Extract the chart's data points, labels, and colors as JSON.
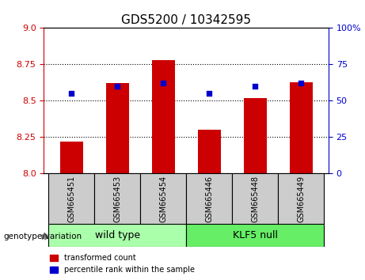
{
  "title": "GDS5200 / 10342595",
  "categories": [
    "GSM665451",
    "GSM665453",
    "GSM665454",
    "GSM665446",
    "GSM665448",
    "GSM665449"
  ],
  "red_values": [
    8.22,
    8.62,
    8.78,
    8.3,
    8.52,
    8.63
  ],
  "blue_values": [
    55,
    60,
    62,
    55,
    60,
    62
  ],
  "ylim_left": [
    8.0,
    9.0
  ],
  "ylim_right": [
    0,
    100
  ],
  "yticks_left": [
    8.0,
    8.25,
    8.5,
    8.75,
    9.0
  ],
  "yticks_right": [
    0,
    25,
    50,
    75,
    100
  ],
  "grid_values": [
    8.25,
    8.5,
    8.75
  ],
  "bar_color": "#cc0000",
  "dot_color": "#0000cc",
  "bar_width": 0.5,
  "wildtype_label": "wild type",
  "klf5_label": "KLF5 null",
  "wildtype_color": "#aaffaa",
  "klf5_color": "#66ee66",
  "genotype_label": "genotype/variation",
  "legend_red": "transformed count",
  "legend_blue": "percentile rank within the sample",
  "title_fontsize": 11,
  "axis_fontsize": 9,
  "tick_fontsize": 8,
  "wildtype_indices": [
    0,
    1,
    2
  ],
  "klf5_indices": [
    3,
    4,
    5
  ]
}
